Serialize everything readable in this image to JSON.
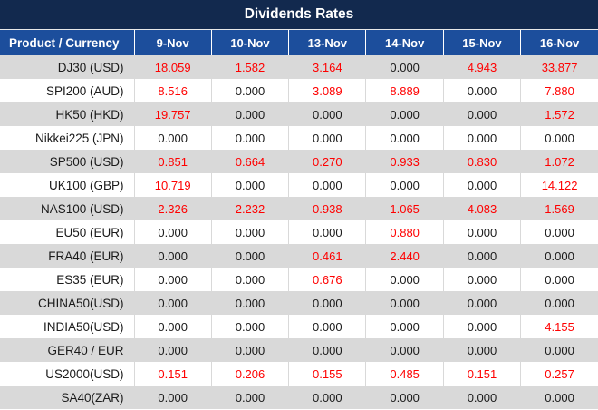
{
  "title": "Dividends Rates",
  "colors": {
    "title_bar_bg": "#12294e",
    "header_bg": "#1c4e9c",
    "alt_row_bg": "#d9d9d9",
    "value_red": "#ff0000",
    "text": "#1a1a1a"
  },
  "table": {
    "product_header": "Product / Currency",
    "date_headers": [
      "9-Nov",
      "10-Nov",
      "13-Nov",
      "14-Nov",
      "15-Nov",
      "16-Nov"
    ],
    "rows": [
      {
        "product": "DJ30 (USD)",
        "values": [
          "18.059",
          "1.582",
          "3.164",
          "0.000",
          "4.943",
          "33.877"
        ]
      },
      {
        "product": "SPI200 (AUD)",
        "values": [
          "8.516",
          "0.000",
          "3.089",
          "8.889",
          "0.000",
          "7.880"
        ]
      },
      {
        "product": "HK50 (HKD)",
        "values": [
          "19.757",
          "0.000",
          "0.000",
          "0.000",
          "0.000",
          "1.572"
        ]
      },
      {
        "product": "Nikkei225 (JPN)",
        "values": [
          "0.000",
          "0.000",
          "0.000",
          "0.000",
          "0.000",
          "0.000"
        ]
      },
      {
        "product": "SP500 (USD)",
        "values": [
          "0.851",
          "0.664",
          "0.270",
          "0.933",
          "0.830",
          "1.072"
        ]
      },
      {
        "product": "UK100 (GBP)",
        "values": [
          "10.719",
          "0.000",
          "0.000",
          "0.000",
          "0.000",
          "14.122"
        ]
      },
      {
        "product": "NAS100 (USD)",
        "values": [
          "2.326",
          "2.232",
          "0.938",
          "1.065",
          "4.083",
          "1.569"
        ]
      },
      {
        "product": "EU50 (EUR)",
        "values": [
          "0.000",
          "0.000",
          "0.000",
          "0.880",
          "0.000",
          "0.000"
        ]
      },
      {
        "product": "FRA40 (EUR)",
        "values": [
          "0.000",
          "0.000",
          "0.461",
          "2.440",
          "0.000",
          "0.000"
        ]
      },
      {
        "product": "ES35 (EUR)",
        "values": [
          "0.000",
          "0.000",
          "0.676",
          "0.000",
          "0.000",
          "0.000"
        ]
      },
      {
        "product": "CHINA50(USD)",
        "values": [
          "0.000",
          "0.000",
          "0.000",
          "0.000",
          "0.000",
          "0.000"
        ]
      },
      {
        "product": "INDIA50(USD)",
        "values": [
          "0.000",
          "0.000",
          "0.000",
          "0.000",
          "0.000",
          "4.155"
        ]
      },
      {
        "product": "GER40 / EUR",
        "values": [
          "0.000",
          "0.000",
          "0.000",
          "0.000",
          "0.000",
          "0.000"
        ]
      },
      {
        "product": "US2000(USD)",
        "values": [
          "0.151",
          "0.206",
          "0.155",
          "0.485",
          "0.151",
          "0.257"
        ]
      },
      {
        "product": "SA40(ZAR)",
        "values": [
          "0.000",
          "0.000",
          "0.000",
          "0.000",
          "0.000",
          "0.000"
        ]
      }
    ]
  }
}
